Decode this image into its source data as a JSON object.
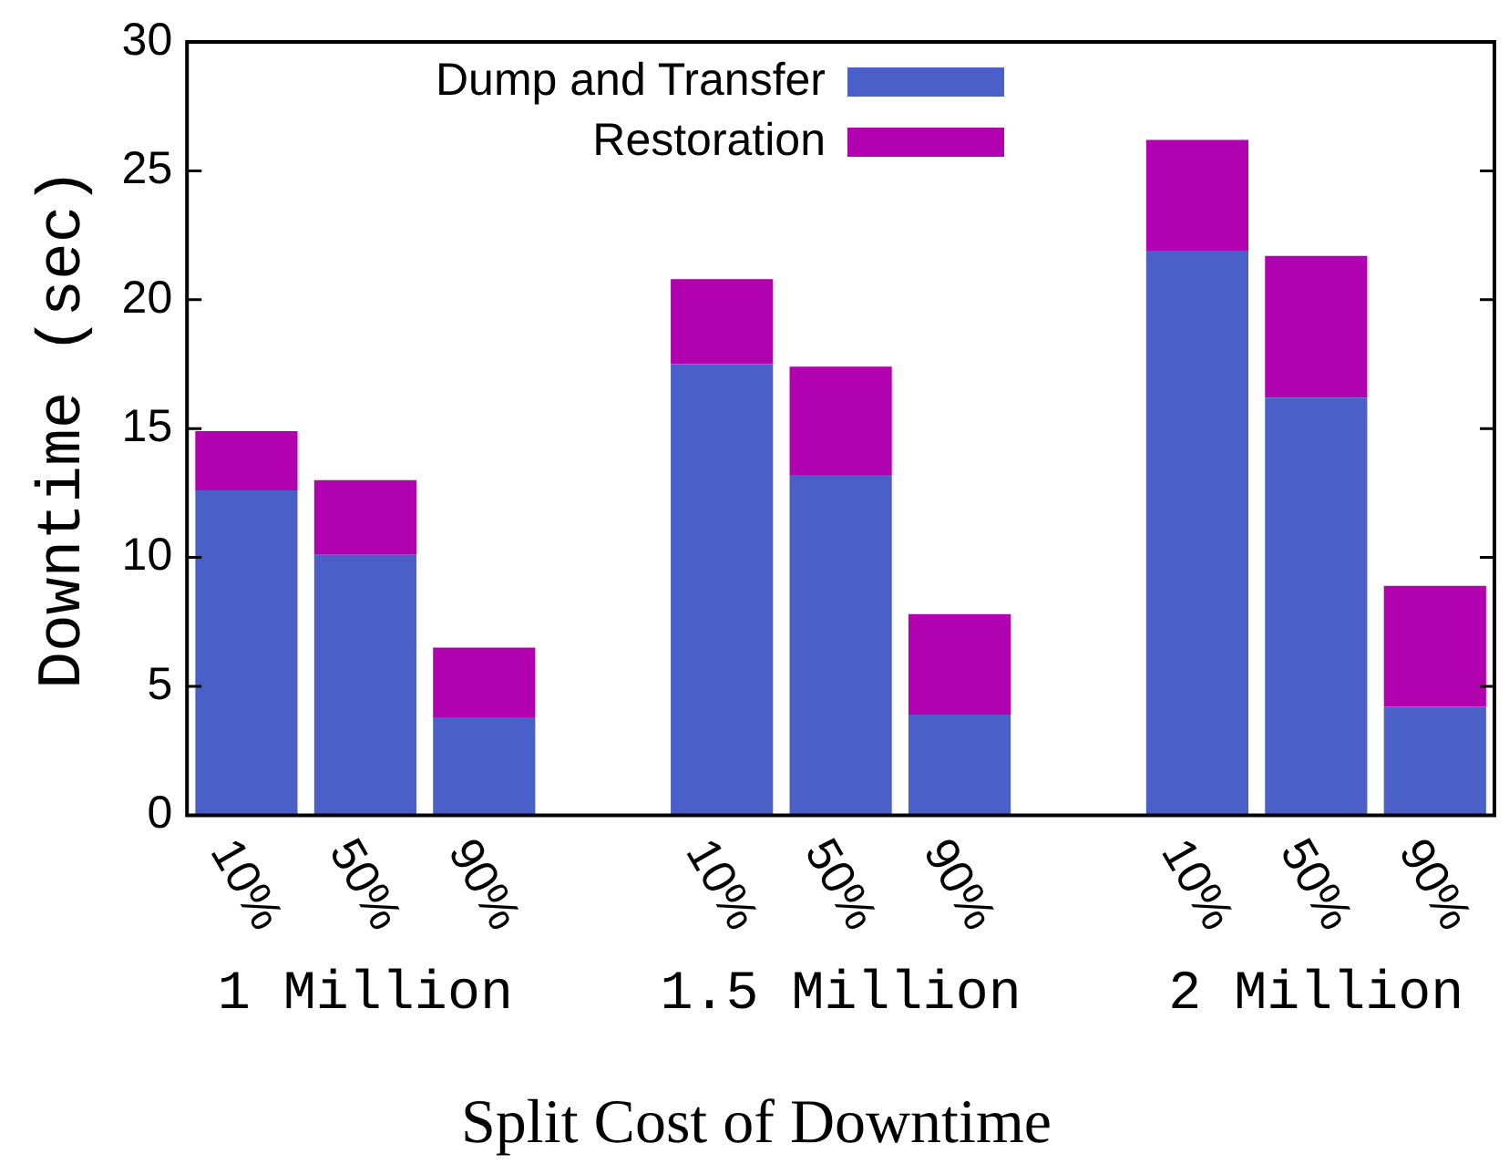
{
  "chart_data": {
    "type": "bar",
    "title": "Split Cost of Downtime",
    "ylabel": "Downtime (sec)",
    "categories": [
      "10%",
      "50%",
      "90%",
      null,
      "10%",
      "50%",
      "90%",
      null,
      "10%",
      "50%",
      "90%"
    ],
    "series": [
      {
        "name": "Dump and Transfer",
        "color": "#4a5fc8",
        "values": [
          12.6,
          10.1,
          3.8,
          null,
          17.5,
          13.2,
          3.9,
          null,
          21.9,
          16.2,
          4.2
        ]
      },
      {
        "name": "Restoration",
        "color": "#b000b0",
        "values": [
          2.3,
          2.9,
          2.7,
          null,
          3.3,
          4.2,
          3.9,
          null,
          4.3,
          5.5,
          4.7
        ]
      }
    ],
    "stacked": true,
    "ylim": [
      0,
      30
    ],
    "yticks": [
      0,
      5,
      10,
      15,
      20,
      25,
      30
    ],
    "grid": false,
    "legend": "top",
    "annotations": [
      "1 Million",
      "1.5 Million",
      "2 Million"
    ]
  }
}
